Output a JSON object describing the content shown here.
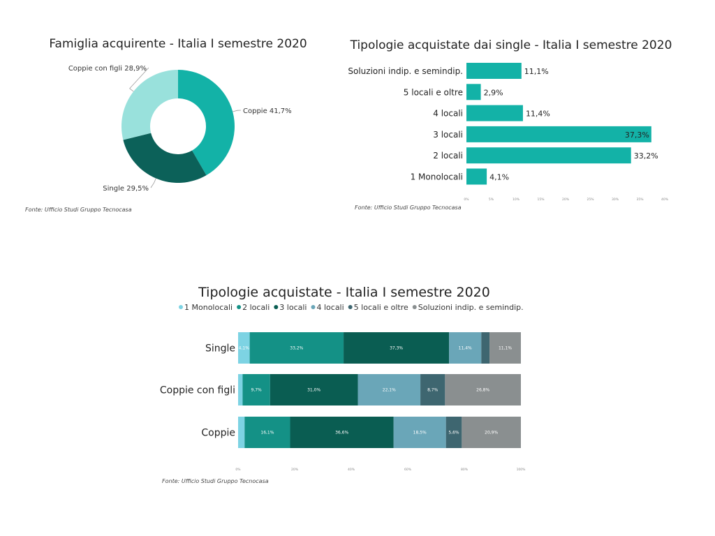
{
  "source": "Fonte: Ufficio Studi Gruppo Tecnocasa",
  "chart_data": [
    {
      "type": "pie",
      "title": "Famiglia acquirente - Italia I semestre 2020",
      "labels": [
        "Coppie",
        "Single",
        "Coppie con figli"
      ],
      "values": [
        41.7,
        29.5,
        28.9
      ],
      "value_labels": [
        "Coppie 41,7%",
        "Single 29,5%",
        "Coppie con figli 28,9%"
      ],
      "colors": [
        "#13b2a7",
        "#0c6159",
        "#99e1dc"
      ],
      "donut": true
    },
    {
      "type": "bar",
      "orientation": "horizontal",
      "title": "Tipologie acquistate dai single - Italia I semestre 2020",
      "categories": [
        "Soluzioni indip. e semindip.",
        "5 locali e oltre",
        "4 locali",
        "3 locali",
        "2 locali",
        "1 Monolocali"
      ],
      "values": [
        11.1,
        2.9,
        11.4,
        37.3,
        33.2,
        4.1
      ],
      "value_labels": [
        "11,1%",
        "2,9%",
        "11,4%",
        "37,3%",
        "33,2%",
        "4,1%"
      ],
      "xlim": [
        0,
        40
      ],
      "xticks": [
        "0%",
        "5%",
        "10%",
        "15%",
        "20%",
        "25%",
        "30%",
        "35%",
        "40%"
      ],
      "color": "#13b2a7"
    },
    {
      "type": "bar",
      "orientation": "horizontal",
      "stacked": true,
      "title": "Tipologie acquistate - Italia I semestre 2020",
      "categories": [
        "Single",
        "Coppie con figli",
        "Coppie"
      ],
      "xlim": [
        0,
        100
      ],
      "xticks": [
        "0%",
        "20%",
        "40%",
        "60%",
        "80%",
        "100%"
      ],
      "legend": "top",
      "series": [
        {
          "name": "1 Monolocali",
          "color": "#7dd3e3",
          "values": [
            4.1,
            1.6,
            2.3
          ],
          "labels": [
            "4,1%",
            "",
            ""
          ]
        },
        {
          "name": "2 locali",
          "color": "#149186",
          "values": [
            33.2,
            9.7,
            16.1
          ],
          "labels": [
            "33,2%",
            "9,7%",
            "16,1%"
          ]
        },
        {
          "name": "3 locali",
          "color": "#0a5d52",
          "values": [
            37.3,
            31.0,
            36.6
          ],
          "labels": [
            "37,3%",
            "31,0%",
            "36,6%"
          ]
        },
        {
          "name": "4 locali",
          "color": "#6aa6b8",
          "values": [
            11.4,
            22.1,
            18.5
          ],
          "labels": [
            "11,4%",
            "22,1%",
            "18,5%"
          ]
        },
        {
          "name": "5 locali e oltre",
          "color": "#3e6670",
          "values": [
            2.9,
            8.7,
            5.6
          ],
          "labels": [
            "",
            "8,7%",
            "5,6%"
          ]
        },
        {
          "name": "Soluzioni indip. e semindip.",
          "color": "#8a8f90",
          "values": [
            11.1,
            26.8,
            20.9
          ],
          "labels": [
            "11,1%",
            "26,8%",
            "20,9%"
          ]
        }
      ]
    }
  ]
}
